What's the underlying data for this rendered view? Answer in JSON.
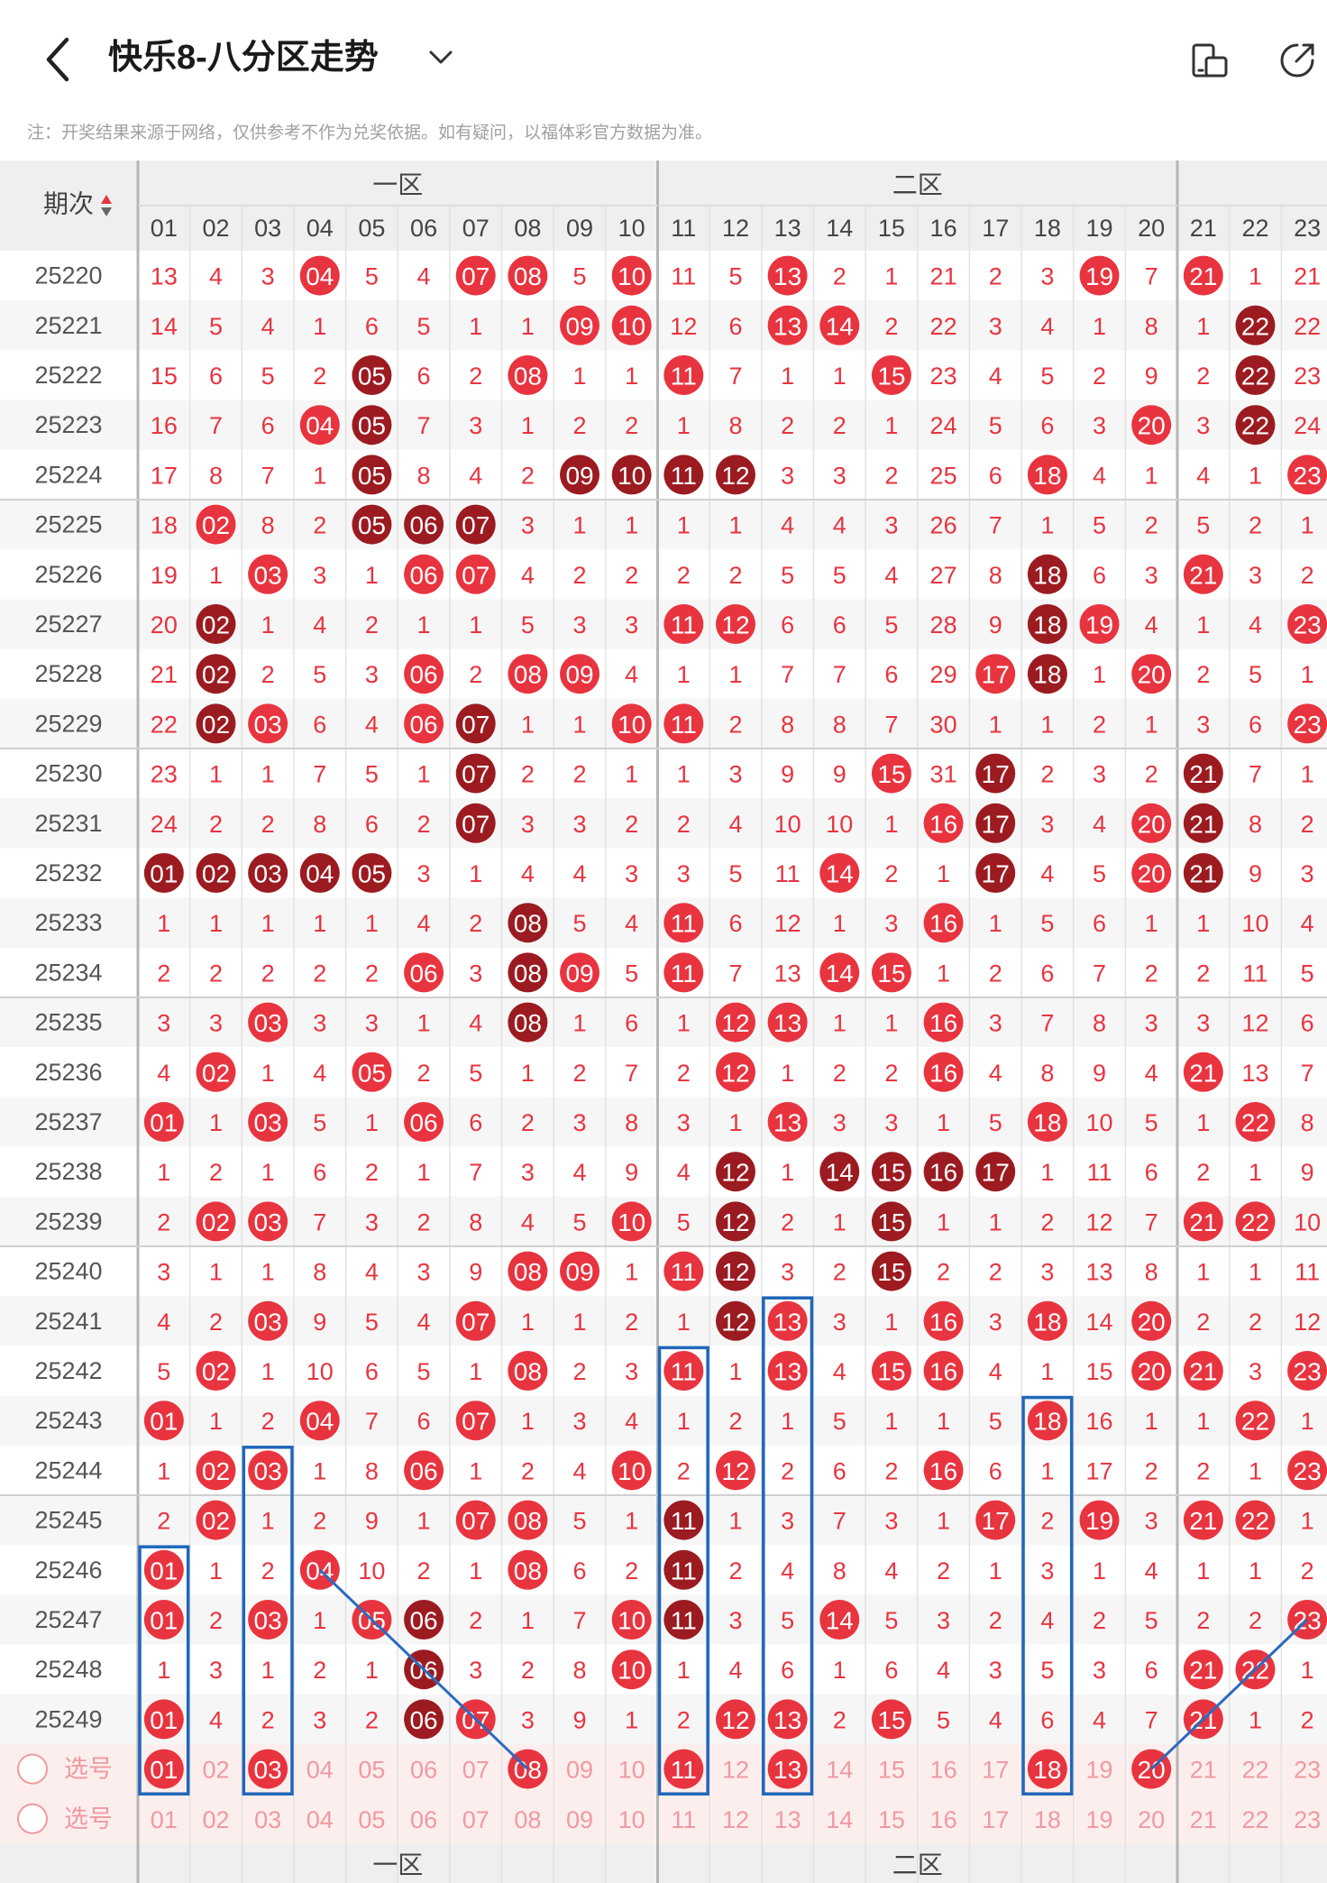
{
  "header": {
    "title": "快乐8-八分区走势"
  },
  "note": "注：开奖结果来源于网络，仅供参考不作为兑奖依据。如有疑问，以福体彩官方数据为准。",
  "table": {
    "period_label": "期次",
    "zones": [
      {
        "label": "一区",
        "cols": [
          1,
          10
        ]
      },
      {
        "label": "二区",
        "cols": [
          11,
          20
        ]
      },
      {
        "label": "",
        "cols": [
          21,
          23
        ]
      }
    ],
    "columns": [
      "01",
      "02",
      "03",
      "04",
      "05",
      "06",
      "07",
      "08",
      "09",
      "10",
      "11",
      "12",
      "13",
      "14",
      "15",
      "16",
      "17",
      "18",
      "19",
      "20",
      "21",
      "22",
      "23"
    ],
    "rows": [
      {
        "period": "25220",
        "cells": [
          "13",
          "4",
          "3",
          "04",
          "5",
          "4",
          "07",
          "08",
          "5",
          "10",
          "11",
          "5",
          "13",
          "2",
          "1",
          "21",
          "2",
          "3",
          "19",
          "7",
          "21",
          "1",
          "21"
        ],
        "hits": [
          4,
          7,
          8,
          10,
          13,
          19,
          21
        ],
        "dark": []
      },
      {
        "period": "25221",
        "cells": [
          "14",
          "5",
          "4",
          "1",
          "6",
          "5",
          "1",
          "1",
          "09",
          "10",
          "12",
          "6",
          "13",
          "14",
          "2",
          "22",
          "3",
          "4",
          "1",
          "8",
          "1",
          "22",
          "22"
        ],
        "hits": [
          9,
          10,
          13,
          14,
          22
        ],
        "dark": [
          22
        ]
      },
      {
        "period": "25222",
        "cells": [
          "15",
          "6",
          "5",
          "2",
          "05",
          "6",
          "2",
          "08",
          "1",
          "1",
          "11",
          "7",
          "1",
          "1",
          "15",
          "23",
          "4",
          "5",
          "2",
          "9",
          "2",
          "22",
          "23"
        ],
        "hits": [
          5,
          8,
          11,
          15,
          22
        ],
        "dark": [
          5,
          22
        ]
      },
      {
        "period": "25223",
        "cells": [
          "16",
          "7",
          "6",
          "04",
          "05",
          "7",
          "3",
          "1",
          "2",
          "2",
          "1",
          "8",
          "2",
          "2",
          "1",
          "24",
          "5",
          "6",
          "3",
          "20",
          "3",
          "22",
          "24"
        ],
        "hits": [
          4,
          5,
          20,
          22
        ],
        "dark": [
          5,
          22
        ]
      },
      {
        "period": "25224",
        "cells": [
          "17",
          "8",
          "7",
          "1",
          "05",
          "8",
          "4",
          "2",
          "09",
          "10",
          "11",
          "12",
          "3",
          "3",
          "2",
          "25",
          "6",
          "18",
          "4",
          "1",
          "4",
          "1",
          "23"
        ],
        "hits": [
          5,
          9,
          10,
          11,
          12,
          18,
          23
        ],
        "dark": [
          5,
          9,
          10,
          11,
          12
        ]
      },
      {
        "period": "25225",
        "cells": [
          "18",
          "02",
          "8",
          "2",
          "05",
          "06",
          "07",
          "3",
          "1",
          "1",
          "1",
          "1",
          "4",
          "4",
          "3",
          "26",
          "7",
          "1",
          "5",
          "2",
          "5",
          "2",
          "1"
        ],
        "hits": [
          2,
          5,
          6,
          7
        ],
        "dark": [
          5,
          6,
          7
        ]
      },
      {
        "period": "25226",
        "cells": [
          "19",
          "1",
          "03",
          "3",
          "1",
          "06",
          "07",
          "4",
          "2",
          "2",
          "2",
          "2",
          "5",
          "5",
          "4",
          "27",
          "8",
          "18",
          "6",
          "3",
          "21",
          "3",
          "2"
        ],
        "hits": [
          3,
          6,
          7,
          18,
          21
        ],
        "dark": [
          18
        ]
      },
      {
        "period": "25227",
        "cells": [
          "20",
          "02",
          "1",
          "4",
          "2",
          "1",
          "1",
          "5",
          "3",
          "3",
          "11",
          "12",
          "6",
          "6",
          "5",
          "28",
          "9",
          "18",
          "19",
          "4",
          "1",
          "4",
          "23"
        ],
        "hits": [
          2,
          11,
          12,
          18,
          19,
          23
        ],
        "dark": [
          2,
          18
        ]
      },
      {
        "period": "25228",
        "cells": [
          "21",
          "02",
          "2",
          "5",
          "3",
          "06",
          "2",
          "08",
          "09",
          "4",
          "1",
          "1",
          "7",
          "7",
          "6",
          "29",
          "17",
          "18",
          "1",
          "20",
          "2",
          "5",
          "1"
        ],
        "hits": [
          2,
          6,
          8,
          9,
          17,
          18,
          20
        ],
        "dark": [
          2,
          18
        ]
      },
      {
        "period": "25229",
        "cells": [
          "22",
          "02",
          "03",
          "6",
          "4",
          "06",
          "07",
          "1",
          "1",
          "10",
          "11",
          "2",
          "8",
          "8",
          "7",
          "30",
          "1",
          "1",
          "2",
          "1",
          "3",
          "6",
          "23"
        ],
        "hits": [
          2,
          3,
          6,
          7,
          10,
          11,
          23
        ],
        "dark": [
          2,
          7
        ]
      },
      {
        "period": "25230",
        "cells": [
          "23",
          "1",
          "1",
          "7",
          "5",
          "1",
          "07",
          "2",
          "2",
          "1",
          "1",
          "3",
          "9",
          "9",
          "15",
          "31",
          "17",
          "2",
          "3",
          "2",
          "21",
          "7",
          "1"
        ],
        "hits": [
          7,
          15,
          17,
          21
        ],
        "dark": [
          7,
          17,
          21
        ]
      },
      {
        "period": "25231",
        "cells": [
          "24",
          "2",
          "2",
          "8",
          "6",
          "2",
          "07",
          "3",
          "3",
          "2",
          "2",
          "4",
          "10",
          "10",
          "1",
          "16",
          "17",
          "3",
          "4",
          "20",
          "21",
          "8",
          "2"
        ],
        "hits": [
          7,
          16,
          17,
          20,
          21
        ],
        "dark": [
          7,
          17,
          21
        ]
      },
      {
        "period": "25232",
        "cells": [
          "01",
          "02",
          "03",
          "04",
          "05",
          "3",
          "1",
          "4",
          "4",
          "3",
          "3",
          "5",
          "11",
          "14",
          "2",
          "1",
          "17",
          "4",
          "5",
          "20",
          "21",
          "9",
          "3"
        ],
        "hits": [
          1,
          2,
          3,
          4,
          5,
          14,
          17,
          20,
          21
        ],
        "dark": [
          1,
          2,
          3,
          4,
          5,
          17,
          21
        ]
      },
      {
        "period": "25233",
        "cells": [
          "1",
          "1",
          "1",
          "1",
          "1",
          "4",
          "2",
          "08",
          "5",
          "4",
          "11",
          "6",
          "12",
          "1",
          "3",
          "16",
          "1",
          "5",
          "6",
          "1",
          "1",
          "10",
          "4"
        ],
        "hits": [
          8,
          11,
          16
        ],
        "dark": [
          8
        ]
      },
      {
        "period": "25234",
        "cells": [
          "2",
          "2",
          "2",
          "2",
          "2",
          "06",
          "3",
          "08",
          "09",
          "5",
          "11",
          "7",
          "13",
          "14",
          "15",
          "1",
          "2",
          "6",
          "7",
          "2",
          "2",
          "11",
          "5"
        ],
        "hits": [
          6,
          8,
          9,
          11,
          14,
          15
        ],
        "dark": [
          8
        ]
      },
      {
        "period": "25235",
        "cells": [
          "3",
          "3",
          "03",
          "3",
          "3",
          "1",
          "4",
          "08",
          "1",
          "6",
          "1",
          "12",
          "13",
          "1",
          "1",
          "16",
          "3",
          "7",
          "8",
          "3",
          "3",
          "12",
          "6"
        ],
        "hits": [
          3,
          8,
          12,
          13,
          16
        ],
        "dark": [
          8
        ]
      },
      {
        "period": "25236",
        "cells": [
          "4",
          "02",
          "1",
          "4",
          "05",
          "2",
          "5",
          "1",
          "2",
          "7",
          "2",
          "12",
          "1",
          "2",
          "2",
          "16",
          "4",
          "8",
          "9",
          "4",
          "21",
          "13",
          "7"
        ],
        "hits": [
          2,
          5,
          12,
          16,
          21
        ],
        "dark": []
      },
      {
        "period": "25237",
        "cells": [
          "01",
          "1",
          "03",
          "5",
          "1",
          "06",
          "6",
          "2",
          "3",
          "8",
          "3",
          "1",
          "13",
          "3",
          "3",
          "1",
          "5",
          "18",
          "10",
          "5",
          "1",
          "22",
          "8"
        ],
        "hits": [
          1,
          3,
          6,
          13,
          18,
          22
        ],
        "dark": []
      },
      {
        "period": "25238",
        "cells": [
          "1",
          "2",
          "1",
          "6",
          "2",
          "1",
          "7",
          "3",
          "4",
          "9",
          "4",
          "12",
          "1",
          "14",
          "15",
          "16",
          "17",
          "1",
          "11",
          "6",
          "2",
          "1",
          "9"
        ],
        "hits": [
          12,
          14,
          15,
          16,
          17
        ],
        "dark": [
          12,
          14,
          15,
          16,
          17
        ]
      },
      {
        "period": "25239",
        "cells": [
          "2",
          "02",
          "03",
          "7",
          "3",
          "2",
          "8",
          "4",
          "5",
          "10",
          "5",
          "12",
          "2",
          "1",
          "15",
          "1",
          "1",
          "2",
          "12",
          "7",
          "21",
          "22",
          "10"
        ],
        "hits": [
          2,
          3,
          10,
          12,
          15,
          21,
          22
        ],
        "dark": [
          12,
          15
        ]
      },
      {
        "period": "25240",
        "cells": [
          "3",
          "1",
          "1",
          "8",
          "4",
          "3",
          "9",
          "08",
          "09",
          "1",
          "11",
          "12",
          "3",
          "2",
          "15",
          "2",
          "2",
          "3",
          "13",
          "8",
          "1",
          "1",
          "11"
        ],
        "hits": [
          8,
          9,
          11,
          12,
          15
        ],
        "dark": [
          12,
          15
        ]
      },
      {
        "period": "25241",
        "cells": [
          "4",
          "2",
          "03",
          "9",
          "5",
          "4",
          "07",
          "1",
          "1",
          "2",
          "1",
          "12",
          "13",
          "3",
          "1",
          "16",
          "3",
          "18",
          "14",
          "20",
          "2",
          "2",
          "12"
        ],
        "hits": [
          3,
          7,
          12,
          13,
          16,
          18,
          20
        ],
        "dark": [
          12
        ]
      },
      {
        "period": "25242",
        "cells": [
          "5",
          "02",
          "1",
          "10",
          "6",
          "5",
          "1",
          "08",
          "2",
          "3",
          "11",
          "1",
          "13",
          "4",
          "15",
          "16",
          "4",
          "1",
          "15",
          "20",
          "21",
          "3",
          "23"
        ],
        "hits": [
          2,
          8,
          11,
          13,
          15,
          16,
          20,
          21,
          23
        ],
        "dark": []
      },
      {
        "period": "25243",
        "cells": [
          "01",
          "1",
          "2",
          "04",
          "7",
          "6",
          "07",
          "1",
          "3",
          "4",
          "1",
          "2",
          "1",
          "5",
          "1",
          "1",
          "5",
          "18",
          "16",
          "1",
          "1",
          "22",
          "1"
        ],
        "hits": [
          1,
          4,
          7,
          18,
          22
        ],
        "dark": []
      },
      {
        "period": "25244",
        "cells": [
          "1",
          "02",
          "03",
          "1",
          "8",
          "06",
          "1",
          "2",
          "4",
          "10",
          "2",
          "12",
          "2",
          "6",
          "2",
          "16",
          "6",
          "1",
          "17",
          "2",
          "2",
          "1",
          "23"
        ],
        "hits": [
          2,
          3,
          6,
          10,
          12,
          16,
          23
        ],
        "dark": []
      },
      {
        "period": "25245",
        "cells": [
          "2",
          "02",
          "1",
          "2",
          "9",
          "1",
          "07",
          "08",
          "5",
          "1",
          "11",
          "1",
          "3",
          "7",
          "3",
          "1",
          "17",
          "2",
          "19",
          "3",
          "21",
          "22",
          "1"
        ],
        "hits": [
          2,
          7,
          8,
          11,
          17,
          19,
          21,
          22
        ],
        "dark": [
          11
        ]
      },
      {
        "period": "25246",
        "cells": [
          "01",
          "1",
          "2",
          "04",
          "10",
          "2",
          "1",
          "08",
          "6",
          "2",
          "11",
          "2",
          "4",
          "8",
          "4",
          "2",
          "1",
          "3",
          "1",
          "4",
          "1",
          "1",
          "2"
        ],
        "hits": [
          1,
          4,
          8,
          11
        ],
        "dark": [
          11
        ]
      },
      {
        "period": "25247",
        "cells": [
          "01",
          "2",
          "03",
          "1",
          "05",
          "06",
          "2",
          "1",
          "7",
          "10",
          "11",
          "3",
          "5",
          "14",
          "5",
          "3",
          "2",
          "4",
          "2",
          "5",
          "2",
          "2",
          "23"
        ],
        "hits": [
          1,
          3,
          5,
          6,
          10,
          11,
          14,
          23
        ],
        "dark": [
          6,
          11
        ]
      },
      {
        "period": "25248",
        "cells": [
          "1",
          "3",
          "1",
          "2",
          "1",
          "06",
          "3",
          "2",
          "8",
          "10",
          "1",
          "4",
          "6",
          "1",
          "6",
          "4",
          "3",
          "5",
          "3",
          "6",
          "21",
          "22",
          "1"
        ],
        "hits": [
          6,
          10,
          21,
          22
        ],
        "dark": [
          6
        ]
      },
      {
        "period": "25249",
        "cells": [
          "01",
          "4",
          "2",
          "3",
          "2",
          "06",
          "07",
          "3",
          "9",
          "1",
          "2",
          "12",
          "13",
          "2",
          "15",
          "5",
          "4",
          "6",
          "4",
          "7",
          "21",
          "1",
          "2"
        ],
        "hits": [
          1,
          6,
          7,
          12,
          13,
          15,
          21
        ],
        "dark": [
          6
        ]
      }
    ],
    "select_rows": [
      {
        "label": "选号",
        "picked": [
          1,
          3,
          8,
          11,
          13,
          18,
          20
        ]
      },
      {
        "label": "选号",
        "picked": []
      }
    ],
    "boxes": [
      {
        "col": 1,
        "from": "25246",
        "to": "选号"
      },
      {
        "col": 3,
        "from": "25244",
        "to": "选号"
      },
      {
        "col": 11,
        "from": "25242",
        "to": "选号"
      },
      {
        "col": 13,
        "from": "25241",
        "to": "选号"
      },
      {
        "col": 18,
        "from": "25243",
        "to": "选号"
      }
    ],
    "trend_lines": [
      {
        "from": {
          "period": "25246",
          "col": 4
        },
        "to": {
          "period": "选号",
          "col": 8
        }
      },
      {
        "from": {
          "period": "25247",
          "col": 23
        },
        "to": {
          "period": "选号",
          "col": 20
        }
      }
    ],
    "colors": {
      "accent": "#e8343f",
      "dark_ball": "#9b1b21",
      "box": "#1f67b9",
      "line": "#2a6bbf",
      "muted": "#ef9a9f",
      "gray_line": "#cfcfcf",
      "header_bg": "#efefef",
      "period": "#555555"
    }
  }
}
